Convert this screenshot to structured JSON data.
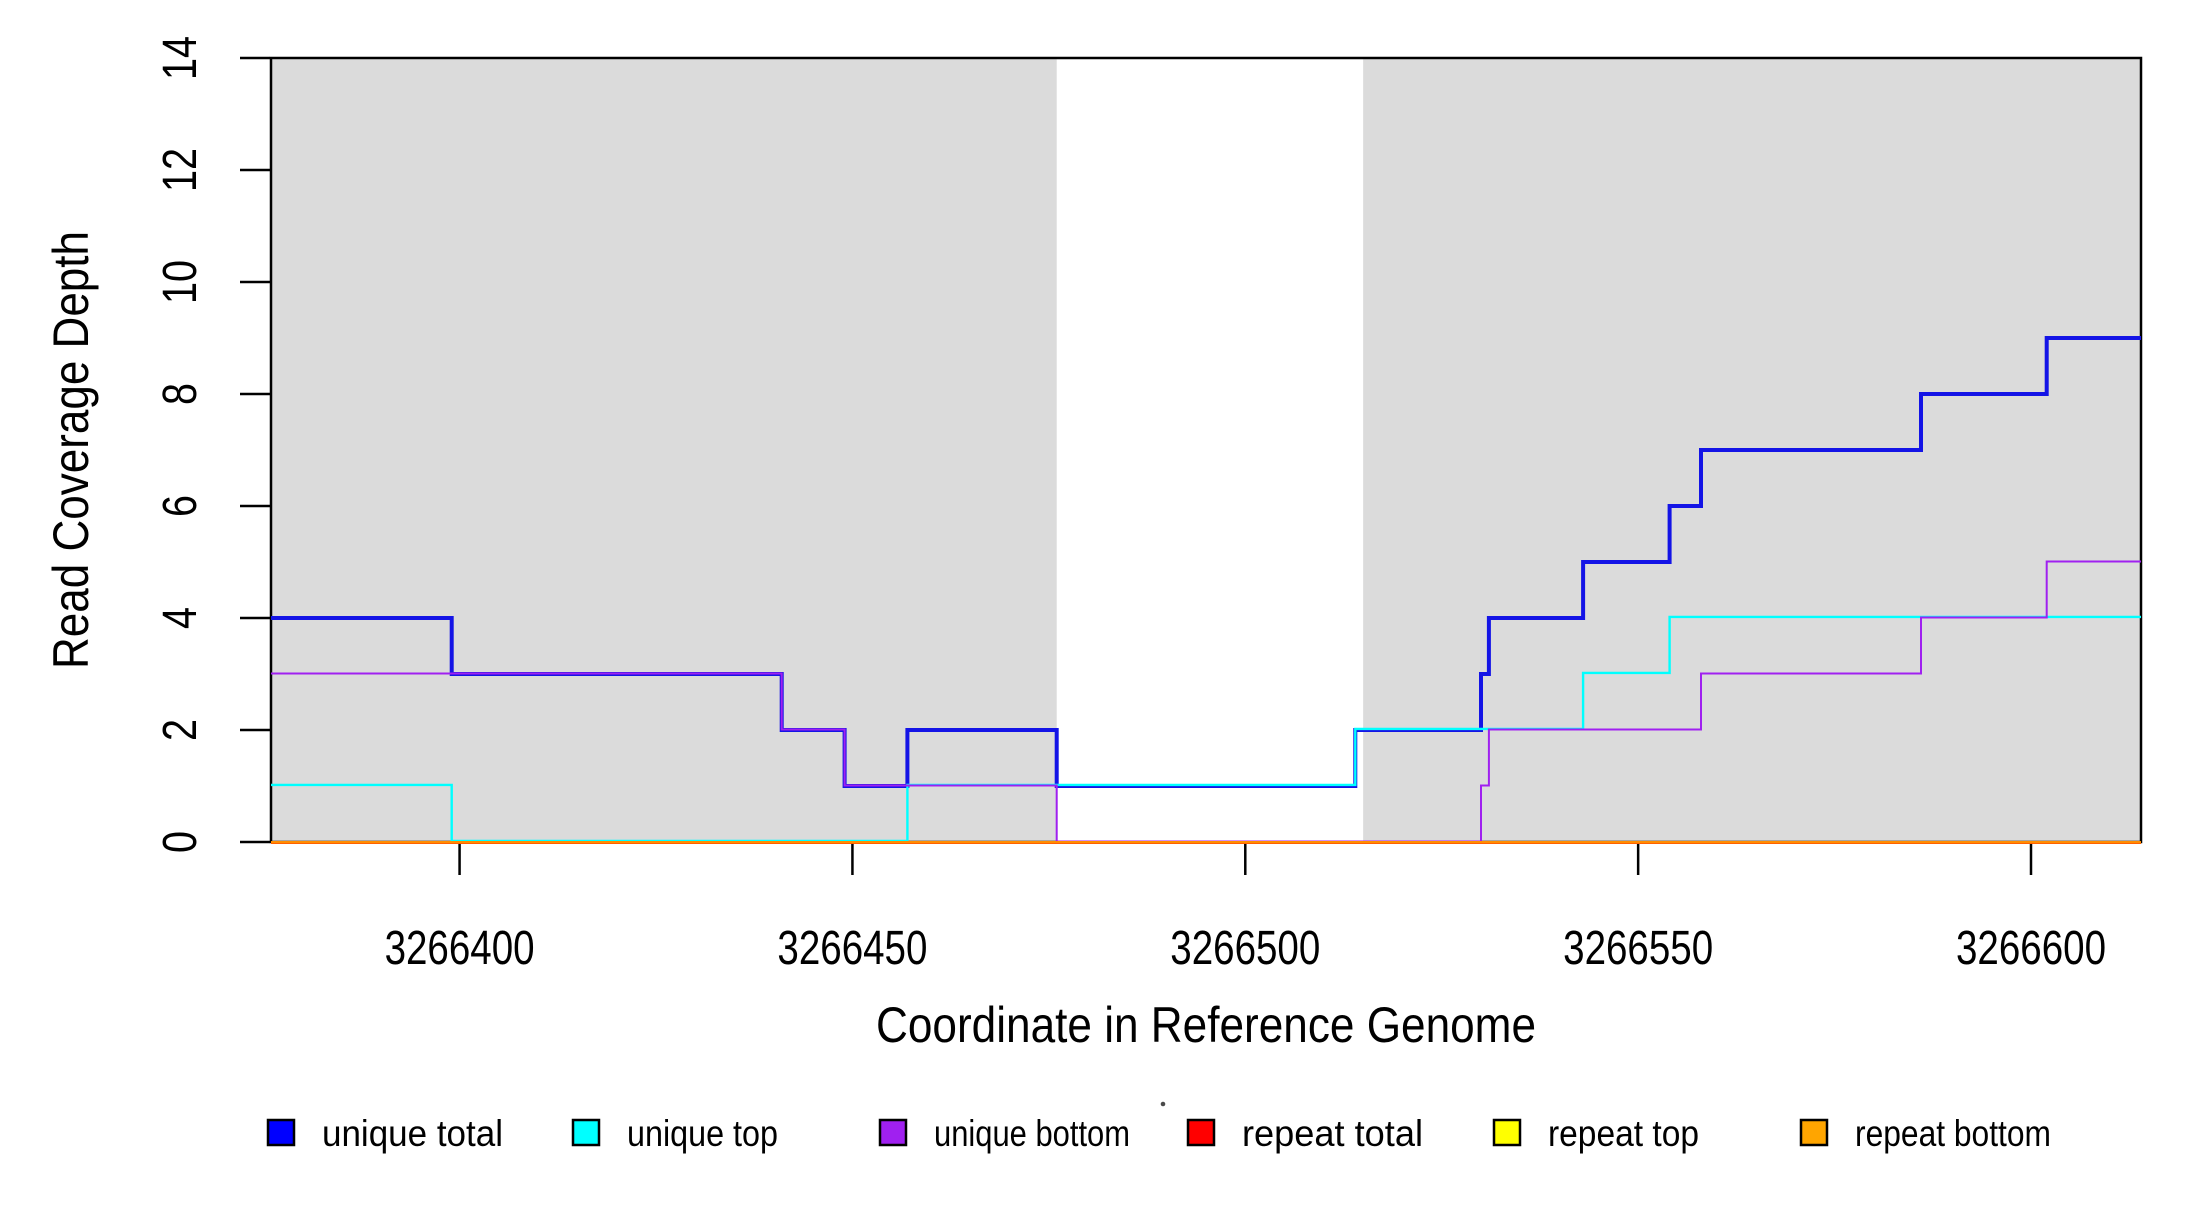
{
  "figure": {
    "background": "#FFFFFF",
    "axis_color": "#000000",
    "text_color": "#000000",
    "shading_color": "#DBDBDB"
  },
  "chart_data": {
    "type": "line",
    "step": "hv",
    "title": "",
    "xlabel": "Coordinate in Reference Genome",
    "ylabel": "Read Coverage Depth",
    "xlim": [
      3266376,
      3266614
    ],
    "ylim": [
      0,
      14
    ],
    "x_ticks": [
      3266400,
      3266450,
      3266500,
      3266550,
      3266600
    ],
    "y_ticks": [
      0,
      2,
      4,
      6,
      8,
      10,
      12,
      14
    ],
    "grid": false,
    "legend_position": "bottom",
    "shaded_regions": [
      {
        "name": "shaded-region-left",
        "x0": 3266376,
        "x1": 3266476
      },
      {
        "name": "shaded-region-right",
        "x0": 3266515,
        "x1": 3266614
      }
    ],
    "series": [
      {
        "name": "unique total",
        "color": "#1414E6",
        "legend_color": "#0000FF",
        "points": [
          [
            3266376,
            4
          ],
          [
            3266399,
            3
          ],
          [
            3266441,
            2
          ],
          [
            3266449,
            1
          ],
          [
            3266457,
            2
          ],
          [
            3266476,
            1
          ],
          [
            3266514,
            2
          ],
          [
            3266530,
            3
          ],
          [
            3266531,
            4
          ],
          [
            3266543,
            5
          ],
          [
            3266554,
            6
          ],
          [
            3266558,
            7
          ],
          [
            3266586,
            8
          ],
          [
            3266602,
            9
          ],
          [
            3266614,
            9
          ]
        ]
      },
      {
        "name": "unique top",
        "color": "#00FFFF",
        "legend_color": "#00FFFF",
        "points": [
          [
            3266376,
            1
          ],
          [
            3266399,
            0
          ],
          [
            3266457,
            1
          ],
          [
            3266514,
            2
          ],
          [
            3266543,
            3
          ],
          [
            3266554,
            4
          ],
          [
            3266614,
            4
          ]
        ]
      },
      {
        "name": "unique bottom",
        "color": "#A020F0",
        "legend_color": "#A020F0",
        "points": [
          [
            3266376,
            3
          ],
          [
            3266441,
            2
          ],
          [
            3266449,
            1
          ],
          [
            3266476,
            0
          ],
          [
            3266530,
            1
          ],
          [
            3266531,
            2
          ],
          [
            3266558,
            3
          ],
          [
            3266586,
            4
          ],
          [
            3266602,
            5
          ],
          [
            3266614,
            5
          ]
        ]
      },
      {
        "name": "repeat total",
        "color": "#FF0000",
        "legend_color": "#FF0000",
        "points": [
          [
            3266376,
            0
          ],
          [
            3266614,
            0
          ]
        ]
      },
      {
        "name": "repeat top",
        "color": "#FFFF00",
        "legend_color": "#FFFF00",
        "points": [
          [
            3266376,
            0
          ],
          [
            3266614,
            0
          ]
        ]
      },
      {
        "name": "repeat bottom",
        "color": "#FF8C00",
        "legend_color": "#FFA500",
        "points": [
          [
            3266376,
            0
          ],
          [
            3266614,
            0
          ]
        ]
      }
    ],
    "legend": {
      "items": [
        {
          "label": "unique total",
          "color": "#0000FF"
        },
        {
          "label": "unique top",
          "color": "#00FFFF"
        },
        {
          "label": "unique bottom",
          "color": "#A020F0"
        },
        {
          "label": "repeat total",
          "color": "#FF0000"
        },
        {
          "label": "repeat top",
          "color": "#FFFF00"
        },
        {
          "label": "repeat bottom",
          "color": "#FFA500"
        }
      ]
    }
  }
}
